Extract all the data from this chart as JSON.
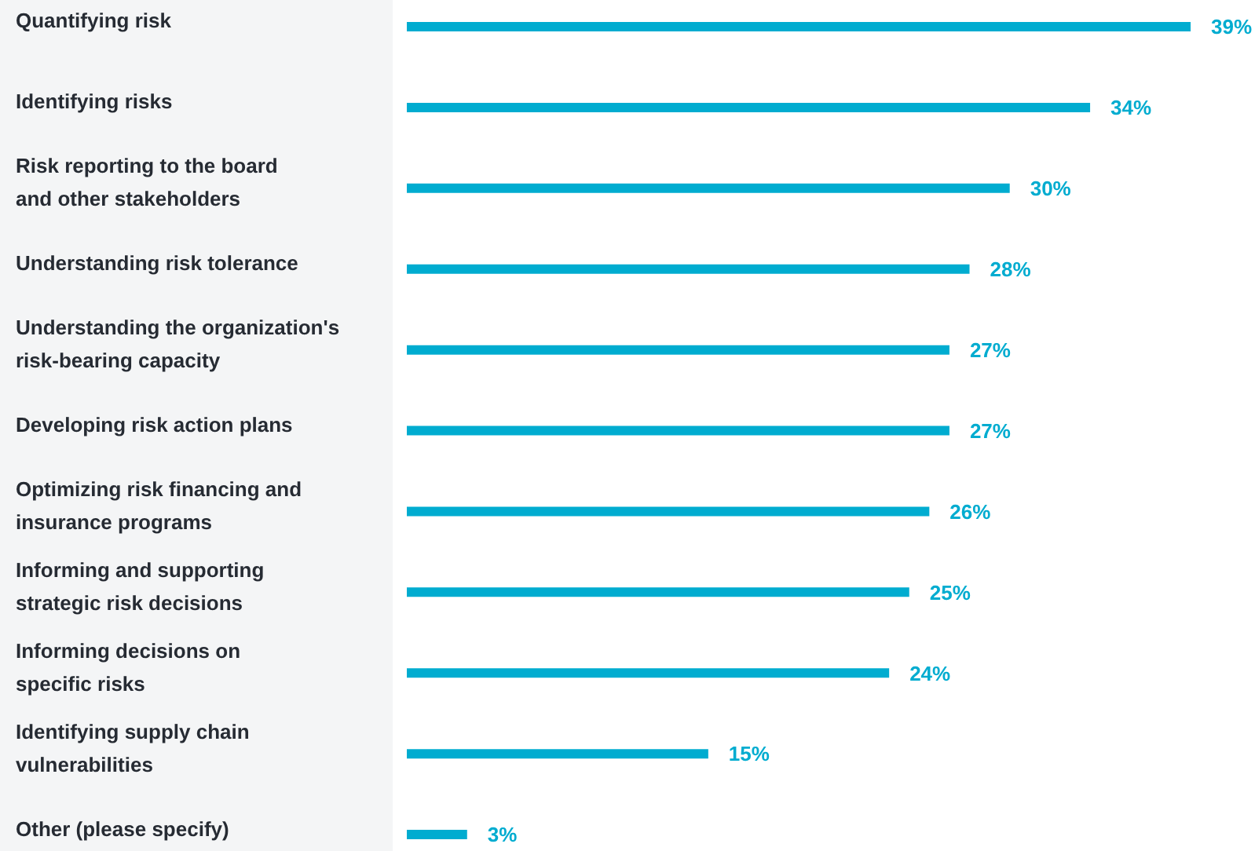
{
  "chart_data": {
    "type": "bar",
    "orientation": "horizontal",
    "categories": [
      "Quantifying risk",
      "Identifying risks",
      "Risk reporting to the board\nand other stakeholders",
      "Understanding risk tolerance",
      "Understanding the organization's\nrisk-bearing capacity",
      "Developing risk action plans",
      "Optimizing risk financing and\ninsurance programs",
      "Informing and supporting\nstrategic risk decisions",
      "Informing decisions on\nspecific risks",
      "Identifying supply chain\nvulnerabilities",
      "Other (please specify)"
    ],
    "values": [
      39,
      34,
      30,
      28,
      27,
      27,
      26,
      25,
      24,
      15,
      3
    ],
    "value_labels": [
      "39%",
      "34%",
      "30%",
      "28%",
      "27%",
      "27%",
      "26%",
      "25%",
      "24%",
      "15%",
      "3%"
    ],
    "color": "#00acd0",
    "grid": false,
    "legend": false
  }
}
